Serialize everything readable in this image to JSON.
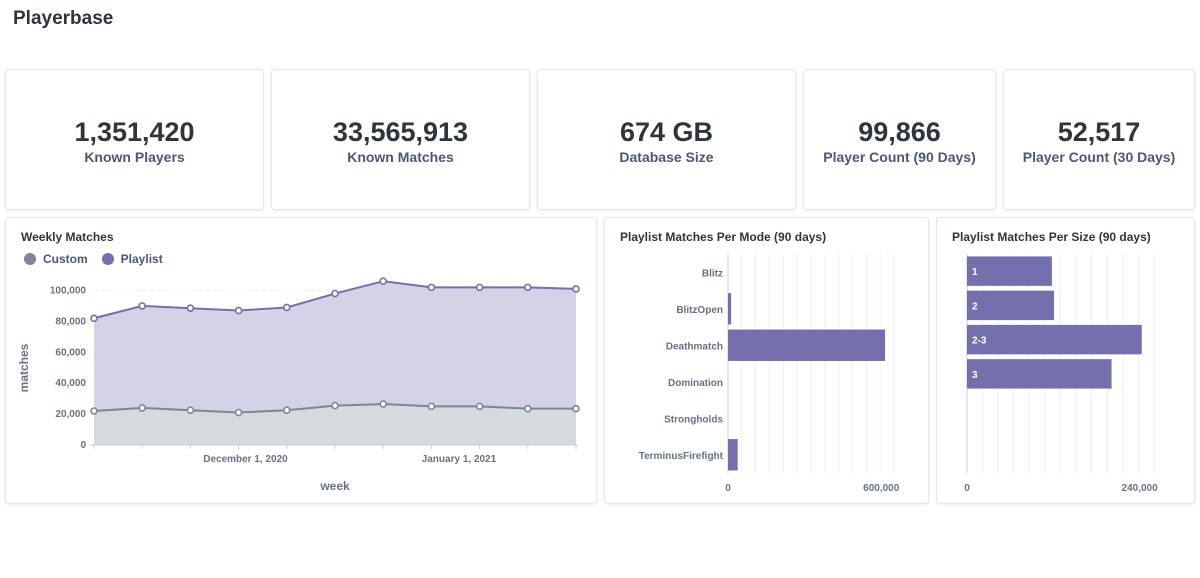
{
  "page": {
    "title": "Playerbase"
  },
  "stats": [
    {
      "value": "1,351,420",
      "label": "Known Players"
    },
    {
      "value": "33,565,913",
      "label": "Known Matches"
    },
    {
      "value": "674 GB",
      "label": "Database Size"
    },
    {
      "value": "99,866",
      "label": "Player Count (90 Days)"
    },
    {
      "value": "52,517",
      "label": "Player Count (30 Days)"
    }
  ],
  "colors": {
    "custom": "#7c8696",
    "playlist": "#7370ad",
    "playlist_fill": "#d3d2e6",
    "custom_fill": "#d6d9dd"
  },
  "chart_data": [
    {
      "type": "area",
      "title": "Weekly Matches",
      "xlabel": "week",
      "ylabel": "matches",
      "ylim": [
        0,
        110000
      ],
      "yticks": [
        0,
        20000,
        40000,
        60000,
        80000,
        100000
      ],
      "ytick_labels": [
        "0",
        "20,000",
        "40,000",
        "60,000",
        "80,000",
        "100,000"
      ],
      "x": [
        "2020-11-09",
        "2020-11-16",
        "2020-11-23",
        "2020-11-30",
        "2020-12-07",
        "2020-12-14",
        "2020-12-21",
        "2020-12-28",
        "2021-01-04",
        "2021-01-11",
        "2021-01-18"
      ],
      "xtick_labels": [
        {
          "x": "2020-12-01",
          "label": "December 1, 2020"
        },
        {
          "x": "2021-01-01",
          "label": "January 1, 2021"
        }
      ],
      "legend": "top-left",
      "series": [
        {
          "name": "Custom",
          "values": [
            22000,
            24000,
            22500,
            21000,
            22500,
            25500,
            26500,
            25000,
            25000,
            23500,
            23500
          ]
        },
        {
          "name": "Playlist",
          "values": [
            82000,
            90000,
            88500,
            87000,
            89000,
            98000,
            106000,
            102000,
            102000,
            102000,
            101000
          ]
        }
      ]
    },
    {
      "type": "bar",
      "orientation": "horizontal",
      "title": "Playlist Matches Per Mode (90 days)",
      "categories": [
        "Blitz",
        "BlitzOpen",
        "Deathmatch",
        "Domination",
        "Strongholds",
        "TerminusFirefight"
      ],
      "values": [
        0,
        12000,
        615000,
        0,
        0,
        38000
      ],
      "xlim": [
        0,
        650000
      ],
      "xticks": [
        0,
        600000
      ],
      "xtick_labels": [
        "0",
        "600,000"
      ]
    },
    {
      "type": "bar",
      "orientation": "horizontal",
      "title": "Playlist Matches Per Size (90 days)",
      "categories": [
        "1",
        "2",
        "2-3",
        "3"
      ],
      "values": [
        118000,
        121000,
        243000,
        201000
      ],
      "xlim": [
        0,
        260000
      ],
      "xticks": [
        0,
        240000
      ],
      "xtick_labels": [
        "0",
        "240,000"
      ]
    }
  ]
}
